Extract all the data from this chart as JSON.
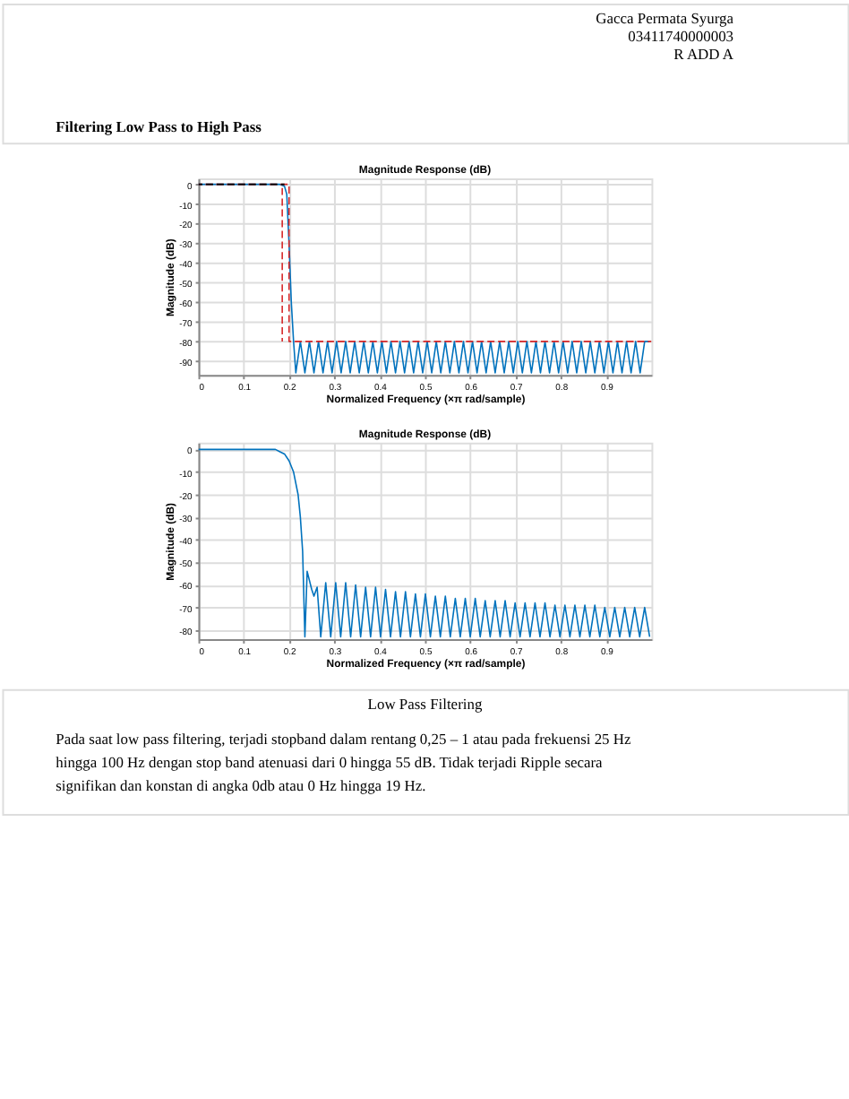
{
  "chart_data": [
    {
      "type": "line",
      "title": "Magnitude Response (dB)",
      "xlabel": "Normalized Frequency (×π rad/sample)",
      "ylabel": "Magnitude (dB)",
      "xlim": [
        0,
        1
      ],
      "xticks": [
        0,
        0.1,
        0.2,
        0.3,
        0.4,
        0.5,
        0.6,
        0.7,
        0.8,
        0.9
      ],
      "ylim": [
        -97,
        3
      ],
      "yticks": [
        0,
        -10,
        -20,
        -30,
        -40,
        -50,
        -60,
        -70,
        -80,
        -90
      ],
      "grid": true,
      "annotations": [
        "Gacca Permata Syurga",
        "03411740000003",
        "R ADD A",
        "Filtering Low Pass to High Pass"
      ],
      "series": [
        {
          "color": "#0072bd",
          "line_style": "solid",
          "x": [
            0,
            0.18,
            0.19,
            0.195,
            0.2,
            0.205,
            0.21,
            0.215,
            0.225,
            0.235,
            0.245,
            0.255,
            0.265,
            0.275,
            0.285,
            0.295,
            0.305,
            0.315,
            0.325,
            0.335,
            0.345,
            0.355,
            0.365,
            0.375,
            0.385,
            0.395,
            0.405,
            0.415,
            0.425,
            0.435,
            0.445,
            0.455,
            0.465,
            0.475,
            0.485,
            0.495,
            0.505,
            0.515,
            0.525,
            0.535,
            0.545,
            0.555,
            0.565,
            0.575,
            0.585,
            0.595,
            0.605,
            0.615,
            0.625,
            0.635,
            0.645,
            0.655,
            0.665,
            0.675,
            0.685,
            0.695,
            0.705,
            0.715,
            0.725,
            0.735,
            0.745,
            0.755,
            0.765,
            0.775,
            0.785,
            0.795,
            0.805,
            0.815,
            0.825,
            0.835,
            0.845,
            0.855,
            0.865,
            0.875,
            0.885,
            0.895,
            0.905,
            0.915,
            0.925,
            0.935,
            0.945,
            0.955,
            0.965,
            0.975,
            0.985,
            0.995
          ],
          "values": [
            0,
            0,
            -1,
            -5,
            -30,
            -60,
            -80,
            -96,
            -80,
            -96,
            -80,
            -96,
            -80,
            -96,
            -80,
            -96,
            -80,
            -96,
            -80,
            -96,
            -80,
            -96,
            -80,
            -96,
            -80,
            -96,
            -80,
            -96,
            -80,
            -96,
            -80,
            -96,
            -80,
            -96,
            -80,
            -96,
            -80,
            -96,
            -80,
            -96,
            -80,
            -96,
            -80,
            -96,
            -80,
            -96,
            -80,
            -96,
            -80,
            -96,
            -80,
            -96,
            -80,
            -96,
            -80,
            -96,
            -80,
            -96,
            -80,
            -96,
            -80,
            -96,
            -80,
            -96,
            -80,
            -96,
            -80,
            -96,
            -80,
            -96,
            -80,
            -96,
            -80,
            -96,
            -80,
            -96,
            -80,
            -96,
            -80,
            -96,
            -80,
            -96,
            -80,
            -96,
            -80,
            -80
          ]
        },
        {
          "color": "#d62728",
          "line_style": "dashed",
          "x": [
            0,
            0.2,
            0.2,
            1
          ],
          "values": [
            0,
            0,
            -80,
            -80
          ]
        },
        {
          "color": "#d62728",
          "line_style": "dashed",
          "x": [
            0.185,
            0.185
          ],
          "values": [
            0,
            -80
          ]
        },
        {
          "color": "#000000",
          "line_style": "dashed",
          "x": [
            0,
            0.19
          ],
          "values": [
            0,
            0
          ]
        }
      ]
    },
    {
      "type": "line",
      "title": "Magnitude Response (dB)",
      "xlabel": "Normalized Frequency (×π rad/sample)",
      "ylabel": "Magnitude (dB)",
      "xlim": [
        0,
        1
      ],
      "xticks": [
        0,
        0.1,
        0.2,
        0.3,
        0.4,
        0.5,
        0.6,
        0.7,
        0.8,
        0.9
      ],
      "ylim": [
        -84,
        3
      ],
      "yticks": [
        0,
        -10,
        -20,
        -30,
        -40,
        -50,
        -60,
        -70,
        -80
      ],
      "grid": true,
      "annotations": [
        "Low Pass Filtering",
        "Pada saat low pass filtering, terjadi stopband dalam rentang 0,25 – 1 atau pada frekuensi 25 Hz",
        "hingga 100 Hz dengan stop band atenuasi dari 0 hingga 55 dB. Tidak terjadi Ripple secara",
        "signifikan dan konstan di angka 0db atau 0 Hz hingga 19 Hz."
      ],
      "series": [
        {
          "color": "#0072bd",
          "line_style": "solid",
          "x": [
            0,
            0.17,
            0.18,
            0.19,
            0.2,
            0.21,
            0.22,
            0.225,
            0.23,
            0.235,
            0.24,
            0.25,
            0.255,
            0.262,
            0.27,
            0.281,
            0.292,
            0.303,
            0.314,
            0.325,
            0.336,
            0.347,
            0.358,
            0.369,
            0.38,
            0.391,
            0.402,
            0.413,
            0.424,
            0.435,
            0.446,
            0.457,
            0.468,
            0.479,
            0.49,
            0.501,
            0.512,
            0.523,
            0.534,
            0.545,
            0.556,
            0.567,
            0.578,
            0.589,
            0.6,
            0.611,
            0.622,
            0.633,
            0.644,
            0.655,
            0.666,
            0.677,
            0.688,
            0.699,
            0.71,
            0.721,
            0.732,
            0.743,
            0.754,
            0.765,
            0.776,
            0.787,
            0.798,
            0.809,
            0.82,
            0.831,
            0.842,
            0.853,
            0.864,
            0.875,
            0.886,
            0.897,
            0.908,
            0.919,
            0.93,
            0.941,
            0.952,
            0.963,
            0.974,
            0.985,
            0.996
          ],
          "values": [
            0,
            0,
            -1,
            -2,
            -5,
            -10,
            -20,
            -30,
            -45,
            -83,
            -54,
            -62,
            -65,
            -61,
            -83,
            -59,
            -83,
            -59,
            -83,
            -59,
            -83,
            -60,
            -83,
            -61,
            -83,
            -61,
            -83,
            -62,
            -83,
            -63,
            -83,
            -63,
            -83,
            -64,
            -83,
            -64,
            -83,
            -65,
            -83,
            -65,
            -83,
            -66,
            -83,
            -66,
            -83,
            -66,
            -83,
            -67,
            -83,
            -67,
            -83,
            -67,
            -83,
            -68,
            -83,
            -68,
            -83,
            -68,
            -83,
            -68,
            -83,
            -69,
            -83,
            -69,
            -83,
            -69,
            -83,
            -69,
            -83,
            -69,
            -83,
            -70,
            -83,
            -70,
            -83,
            -70,
            -83,
            -70,
            -83,
            -70,
            -83
          ]
        }
      ]
    }
  ]
}
